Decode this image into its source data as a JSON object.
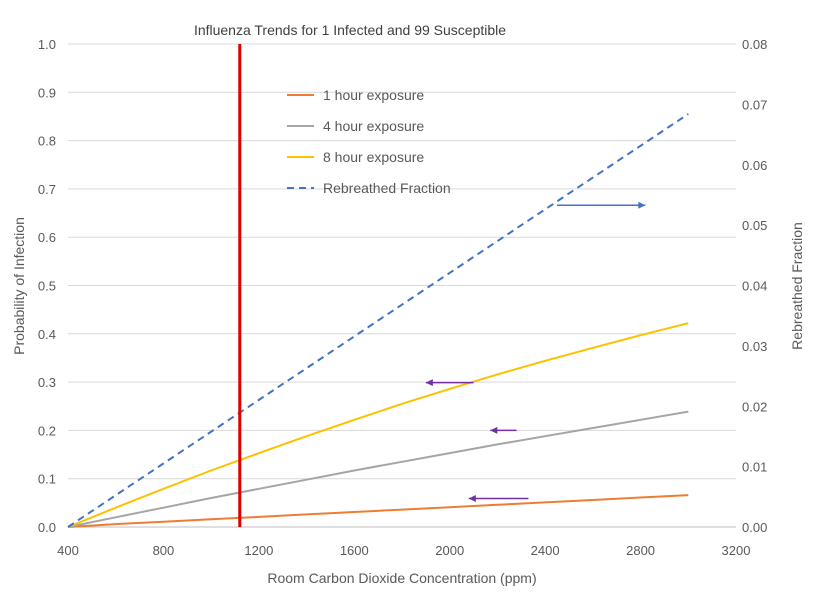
{
  "chart_data": {
    "type": "line",
    "title": "Influenza Trends for 1 Infected and 99 Susceptible",
    "xlabel": "Room Carbon Dioxide Concentration (ppm)",
    "ylabel": "Probability of Infection",
    "y2label": "Rebreathed Fraction",
    "xlim": [
      400,
      3200
    ],
    "ylim": [
      0,
      1.0
    ],
    "y2lim": [
      0,
      0.08
    ],
    "xticks": [
      "400",
      "800",
      "1200",
      "1600",
      "2000",
      "2400",
      "2800",
      "3200"
    ],
    "yticks": [
      "0.0",
      "0.1",
      "0.2",
      "0.3",
      "0.4",
      "0.5",
      "0.6",
      "0.7",
      "0.8",
      "0.9",
      "1.0"
    ],
    "y2ticks": [
      "0.00",
      "0.01",
      "0.02",
      "0.03",
      "0.04",
      "0.05",
      "0.06",
      "0.07",
      "0.08"
    ],
    "grid": true,
    "legend_position": "top-center",
    "vertical_marker_x": 1120,
    "series": [
      {
        "name": "1 hour exposure",
        "axis": "left",
        "color": "#ED7D31",
        "dash": false,
        "x": [
          400,
          600,
          800,
          1000,
          1200,
          1400,
          1600,
          1800,
          2000,
          2200,
          2400,
          2600,
          2800,
          3000
        ],
        "y": [
          0.0,
          0.006,
          0.011,
          0.016,
          0.021,
          0.026,
          0.031,
          0.036,
          0.041,
          0.046,
          0.051,
          0.056,
          0.061,
          0.066
        ]
      },
      {
        "name": "4 hour exposure",
        "axis": "left",
        "color": "#A5A5A5",
        "dash": false,
        "x": [
          400,
          600,
          800,
          1000,
          1200,
          1400,
          1600,
          1800,
          2000,
          2200,
          2400,
          2600,
          2800,
          3000
        ],
        "y": [
          0.0,
          0.02,
          0.04,
          0.06,
          0.079,
          0.098,
          0.117,
          0.135,
          0.153,
          0.171,
          0.188,
          0.205,
          0.222,
          0.239
        ]
      },
      {
        "name": "8 hour exposure",
        "axis": "left",
        "color": "#FFC000",
        "dash": false,
        "x": [
          400,
          600,
          800,
          1000,
          1200,
          1400,
          1600,
          1800,
          2000,
          2200,
          2400,
          2600,
          2800,
          3000
        ],
        "y": [
          0.0,
          0.04,
          0.079,
          0.117,
          0.153,
          0.188,
          0.222,
          0.255,
          0.286,
          0.316,
          0.344,
          0.371,
          0.397,
          0.422
        ]
      },
      {
        "name": "Rebreathed Fraction",
        "axis": "right",
        "color": "#4472C4",
        "dash": true,
        "x": [
          400,
          3000
        ],
        "y": [
          0.0,
          0.0684
        ]
      }
    ],
    "annotations": [
      {
        "type": "arrow",
        "color": "#4472C4",
        "from": [
          2450,
          0.0533
        ],
        "to": [
          2820,
          0.0533
        ],
        "axis": "right"
      },
      {
        "type": "arrow",
        "color": "#7030A0",
        "from": [
          2100,
          0.299
        ],
        "to": [
          1900,
          0.299
        ],
        "axis": "left"
      },
      {
        "type": "arrow",
        "color": "#7030A0",
        "from": [
          2280,
          0.2
        ],
        "to": [
          2170,
          0.2
        ],
        "axis": "left"
      },
      {
        "type": "arrow",
        "color": "#7030A0",
        "from": [
          2330,
          0.059
        ],
        "to": [
          2080,
          0.059
        ],
        "axis": "left"
      }
    ]
  }
}
